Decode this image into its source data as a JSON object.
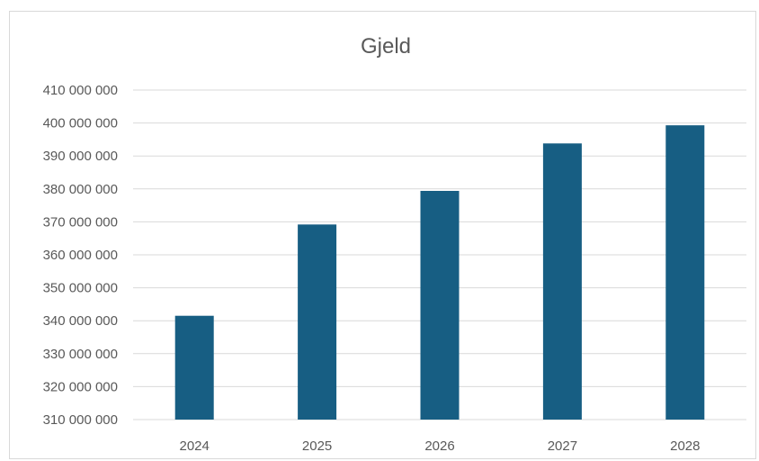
{
  "chart_data": {
    "type": "bar",
    "title": "Gjeld",
    "categories": [
      "2024",
      "2025",
      "2026",
      "2027",
      "2028"
    ],
    "values": [
      341500000,
      369200000,
      379400000,
      393800000,
      399300000
    ],
    "ylim": [
      310000000,
      410000000
    ],
    "yticks": [
      310000000,
      320000000,
      330000000,
      340000000,
      350000000,
      360000000,
      370000000,
      380000000,
      390000000,
      400000000,
      410000000
    ],
    "ytick_labels": [
      "310 000 000",
      "320 000 000",
      "330 000 000",
      "340 000 000",
      "350 000 000",
      "360 000 000",
      "370 000 000",
      "380 000 000",
      "390 000 000",
      "400 000 000",
      "410 000 000"
    ],
    "xlabel": "",
    "ylabel": "",
    "grid": true,
    "legend": false,
    "colors": {
      "bar": "#175e83",
      "grid": "#d9d9d9",
      "text": "#595959"
    }
  }
}
